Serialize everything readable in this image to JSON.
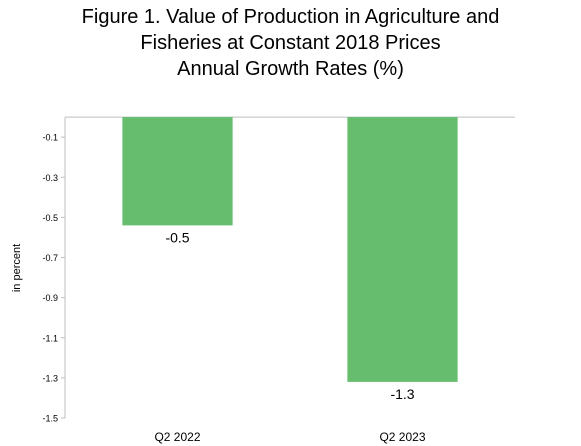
{
  "chart_data": {
    "type": "bar",
    "title_lines": [
      "Figure 1. Value of Production in Agriculture and",
      "Fisheries at Constant 2018 Prices",
      "Annual Growth Rates (%)"
    ],
    "xlabel": "",
    "ylabel": "in percent",
    "categories": [
      "Q2 2022",
      "Q2 2023"
    ],
    "values": [
      -0.54,
      -1.32
    ],
    "data_labels": [
      "-0.5",
      "-1.3"
    ],
    "ylim": [
      -1.5,
      0.1
    ],
    "yticks": [
      -0.1,
      -0.3,
      -0.5,
      -0.7,
      -0.9,
      -1.1,
      -1.3,
      -1.5
    ],
    "ytick_labels": [
      "-0.1",
      "-0.3",
      "-0.5",
      "-0.7",
      "-0.9",
      "-1.1",
      "-1.3",
      "-1.5"
    ],
    "grid": false,
    "legend": "none",
    "bar_color": "#66BD6E",
    "axis_color": "#BFBFBF"
  }
}
